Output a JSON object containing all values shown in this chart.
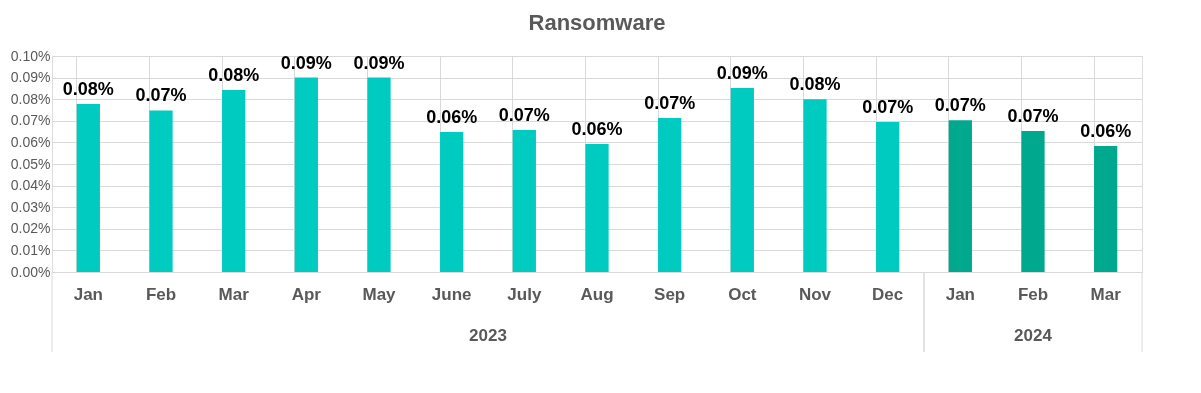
{
  "chart_data": {
    "type": "bar",
    "title": "Ransomware",
    "categories": [
      "Jan",
      "Feb",
      "Mar",
      "Apr",
      "May",
      "June",
      "July",
      "Aug",
      "Sep",
      "Oct",
      "Nov",
      "Dec",
      "Jan",
      "Feb",
      "Mar"
    ],
    "values": [
      0.0778,
      0.0748,
      0.0843,
      0.09,
      0.09,
      0.0648,
      0.0657,
      0.0593,
      0.0713,
      0.0852,
      0.08,
      0.0694,
      0.0703,
      0.0653,
      0.0583
    ],
    "colors": [
      "#00cbc0",
      "#00cbc0",
      "#00cbc0",
      "#00cbc0",
      "#00cbc0",
      "#00cbc0",
      "#00cbc0",
      "#00cbc0",
      "#00cbc0",
      "#00cbc0",
      "#00cbc0",
      "#00cbc0",
      "#00a88e",
      "#00a88e",
      "#00a88e"
    ],
    "value_labels": [
      "0.08%",
      "0.07%",
      "0.08%",
      "0.09%",
      "0.09%",
      "0.06%",
      "0.07%",
      "0.06%",
      "0.07%",
      "0.09%",
      "0.08%",
      "0.07%",
      "0.07%",
      "0.07%",
      "0.06%"
    ],
    "ylim": [
      0,
      0.1
    ],
    "yticks": [
      {
        "value": 0,
        "label": "0.00%"
      },
      {
        "value": 0.01,
        "label": "0.01%"
      },
      {
        "value": 0.02,
        "label": "0.02%"
      },
      {
        "value": 0.03,
        "label": "0.03%"
      },
      {
        "value": 0.04,
        "label": "0.04%"
      },
      {
        "value": 0.05,
        "label": "0.05%"
      },
      {
        "value": 0.06,
        "label": "0.06%"
      },
      {
        "value": 0.07,
        "label": "0.07%"
      },
      {
        "value": 0.08,
        "label": "0.08%"
      },
      {
        "value": 0.09,
        "label": "0.09%"
      },
      {
        "value": 0.1,
        "label": "0.10%"
      }
    ],
    "annotations": [
      "2023",
      "2024"
    ],
    "grid": true
  }
}
